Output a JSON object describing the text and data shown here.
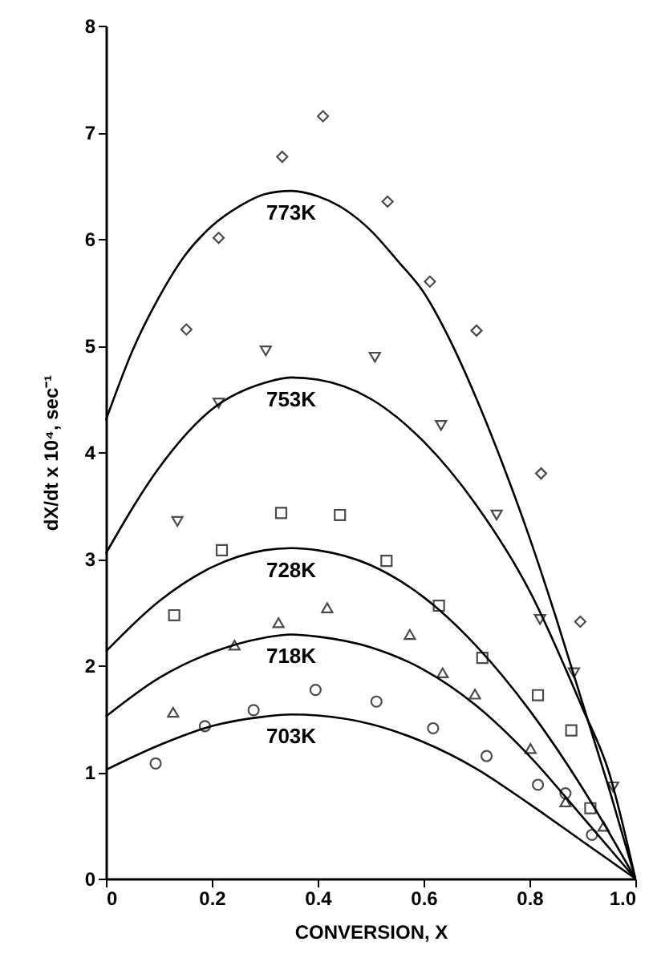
{
  "chart_data": {
    "type": "scatter",
    "xlabel": "CONVERSION, X",
    "ylabel": "dX/dt x 10⁴, sec⁻¹",
    "xlim": [
      0,
      1
    ],
    "ylim": [
      0,
      8
    ],
    "xticks": [
      0,
      0.2,
      0.4,
      0.6,
      0.8,
      {
        "value": 1,
        "label": "1.0"
      }
    ],
    "yticks": [
      0,
      1,
      2,
      3,
      4,
      5,
      6,
      7,
      8
    ],
    "grid": false,
    "series": [
      {
        "type": "scatter",
        "marker": "diamond",
        "color": "#000000",
        "x": [
          0.152,
          0.213,
          0.333,
          0.41,
          0.532,
          0.612,
          0.7,
          0.822,
          0.896
        ],
        "values": [
          5.15,
          6.01,
          6.77,
          7.15,
          6.35,
          5.6,
          5.14,
          3.8,
          2.41
        ]
      },
      {
        "type": "scatter",
        "marker": "triangle-down",
        "color": "#000000",
        "x": [
          0.135,
          0.213,
          0.302,
          0.508,
          0.633,
          0.738,
          0.82,
          0.884,
          0.958
        ],
        "values": [
          3.35,
          4.46,
          4.95,
          4.89,
          4.25,
          3.41,
          2.43,
          1.93,
          0.86
        ]
      },
      {
        "type": "scatter",
        "marker": "square",
        "color": "#000000",
        "x": [
          0.129,
          0.219,
          0.331,
          0.442,
          0.53,
          0.629,
          0.711,
          0.816,
          0.879,
          0.915
        ],
        "values": [
          2.47,
          3.08,
          3.43,
          3.41,
          2.98,
          2.56,
          2.07,
          1.72,
          1.39,
          0.66
        ]
      },
      {
        "type": "scatter",
        "marker": "triangle",
        "color": "#000000",
        "x": [
          0.127,
          0.243,
          0.326,
          0.418,
          0.574,
          0.636,
          0.697,
          0.802,
          0.868,
          0.94
        ],
        "values": [
          1.56,
          2.19,
          2.4,
          2.54,
          2.29,
          1.93,
          1.73,
          1.22,
          0.72,
          0.49
        ]
      },
      {
        "type": "scatter",
        "marker": "circle",
        "color": "#000000",
        "x": [
          0.094,
          0.187,
          0.279,
          0.396,
          0.511,
          0.618,
          0.719,
          0.816,
          0.868,
          0.918
        ],
        "values": [
          1.08,
          1.43,
          1.58,
          1.77,
          1.66,
          1.41,
          1.15,
          0.88,
          0.8,
          0.41
        ]
      },
      {
        "type": "line",
        "name": "773K",
        "color": "#000000",
        "x": [
          0,
          0.05,
          0.1,
          0.15,
          0.2,
          0.25,
          0.3,
          0.35,
          0.4,
          0.45,
          0.5,
          0.55,
          0.6,
          0.65,
          0.7,
          0.75,
          0.8,
          0.85,
          0.9,
          0.95,
          1.0
        ],
        "values": [
          4.3,
          4.95,
          5.45,
          5.85,
          6.12,
          6.3,
          6.42,
          6.45,
          6.4,
          6.28,
          6.08,
          5.8,
          5.5,
          5.05,
          4.5,
          3.88,
          3.2,
          2.45,
          1.65,
          0.85,
          0
        ]
      },
      {
        "type": "line",
        "name": "753K",
        "color": "#000000",
        "x": [
          0,
          0.1,
          0.2,
          0.3,
          0.35,
          0.4,
          0.5,
          0.6,
          0.7,
          0.8,
          0.9,
          0.95,
          1.0
        ],
        "values": [
          3.05,
          3.85,
          4.4,
          4.65,
          4.7,
          4.68,
          4.5,
          4.1,
          3.5,
          2.7,
          1.6,
          1.0,
          0
        ]
      },
      {
        "type": "line",
        "name": "728K",
        "color": "#000000",
        "x": [
          0,
          0.1,
          0.2,
          0.3,
          0.35,
          0.4,
          0.5,
          0.6,
          0.7,
          0.8,
          0.9,
          1.0
        ],
        "values": [
          2.13,
          2.6,
          2.92,
          3.08,
          3.1,
          3.08,
          2.94,
          2.64,
          2.18,
          1.58,
          0.85,
          0
        ]
      },
      {
        "type": "line",
        "name": "718K",
        "color": "#000000",
        "x": [
          0,
          0.1,
          0.2,
          0.3,
          0.35,
          0.4,
          0.5,
          0.6,
          0.7,
          0.8,
          0.9,
          1.0
        ],
        "values": [
          1.52,
          1.88,
          2.12,
          2.26,
          2.29,
          2.27,
          2.17,
          1.96,
          1.62,
          1.15,
          0.58,
          0
        ]
      },
      {
        "type": "line",
        "name": "703K",
        "color": "#000000",
        "x": [
          0,
          0.1,
          0.2,
          0.3,
          0.35,
          0.4,
          0.5,
          0.6,
          0.7,
          0.8,
          0.9,
          1.0
        ],
        "values": [
          1.02,
          1.25,
          1.43,
          1.52,
          1.54,
          1.53,
          1.45,
          1.28,
          1.03,
          0.7,
          0.35,
          0
        ]
      }
    ]
  }
}
